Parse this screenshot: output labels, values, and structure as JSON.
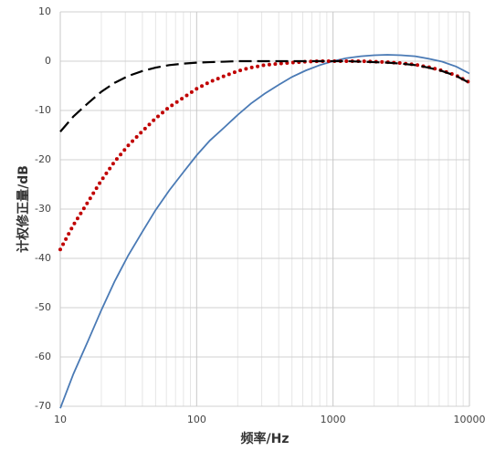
{
  "chart_data": {
    "type": "line",
    "x_label": "频率/Hz",
    "y_label": "计权修正量/dB",
    "x": [
      10,
      12.5,
      16,
      20,
      25,
      31.5,
      40,
      50,
      63,
      80,
      100,
      125,
      160,
      200,
      250,
      315,
      400,
      500,
      630,
      800,
      1000,
      1250,
      1600,
      2000,
      2500,
      3150,
      4000,
      5000,
      6300,
      8000,
      10000
    ],
    "series": [
      {
        "color": "#4a7ab5",
        "line_style": "solid",
        "values": [
          -70.4,
          -63.4,
          -56.7,
          -50.5,
          -44.7,
          -39.4,
          -34.6,
          -30.2,
          -26.2,
          -22.5,
          -19.1,
          -16.1,
          -13.4,
          -10.9,
          -8.6,
          -6.6,
          -4.8,
          -3.2,
          -1.9,
          -0.8,
          0,
          0.6,
          1.0,
          1.2,
          1.3,
          1.2,
          1.0,
          0.5,
          -0.1,
          -1.1,
          -2.5
        ]
      },
      {
        "color": "#c00000",
        "line_style": "dotted",
        "values": [
          -38.2,
          -33.2,
          -28.5,
          -24.2,
          -20.4,
          -17.1,
          -14.2,
          -11.6,
          -9.3,
          -7.4,
          -5.6,
          -4.2,
          -3.0,
          -2.0,
          -1.3,
          -0.8,
          -0.5,
          -0.3,
          -0.1,
          0,
          0,
          0,
          0,
          -0.1,
          -0.2,
          -0.4,
          -0.7,
          -1.2,
          -1.9,
          -2.9,
          -4.3
        ]
      },
      {
        "color": "#000000",
        "line_style": "dashed",
        "values": [
          -14.3,
          -11.2,
          -8.5,
          -6.2,
          -4.4,
          -3.0,
          -2.0,
          -1.3,
          -0.8,
          -0.5,
          -0.3,
          -0.2,
          -0.1,
          0,
          0,
          0,
          0,
          0,
          0,
          0,
          0,
          0,
          -0.1,
          -0.2,
          -0.3,
          -0.5,
          -0.8,
          -1.3,
          -2.0,
          -3.0,
          -4.4
        ]
      }
    ],
    "x_log": true,
    "xlim": [
      10,
      10000
    ],
    "xticks": [
      10,
      100,
      1000,
      10000
    ],
    "ylim": [
      -70,
      10
    ],
    "yticks": [
      -70,
      -60,
      -50,
      -40,
      -30,
      -20,
      -10,
      0,
      10
    ],
    "grid": true,
    "minor_grid": true
  }
}
